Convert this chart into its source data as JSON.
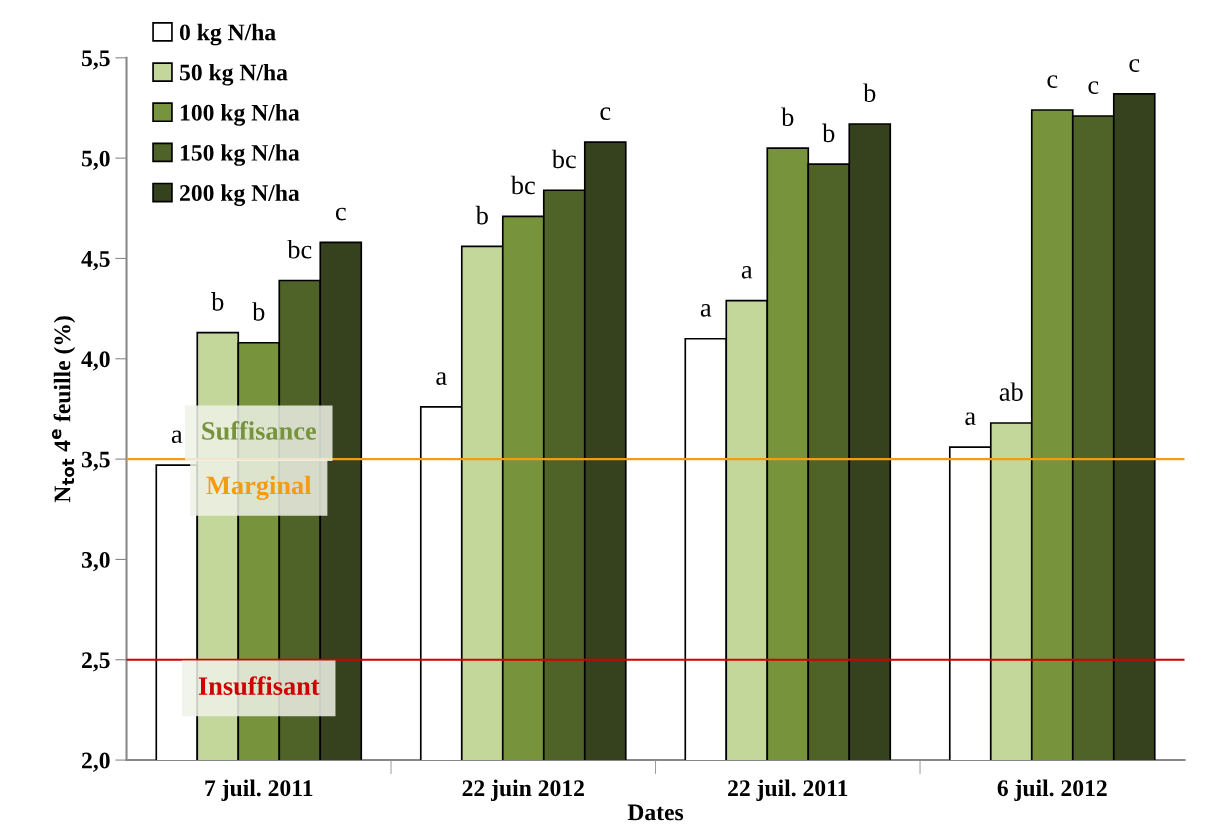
{
  "chart_data": {
    "type": "bar",
    "xlabel": "Dates",
    "ylabel": "N$_{tot}$ 4$^{e}$ feuille (%)",
    "categories": [
      "7 juil. 2011",
      "22 juin 2012",
      "22 juil. 2011",
      "6 juil. 2012"
    ],
    "series": [
      {
        "name": "0 kg N/ha",
        "color": "#ffffff",
        "values": [
          3.47,
          3.76,
          4.1,
          3.56
        ],
        "value_labels": [
          "a",
          "a",
          "a",
          "a"
        ]
      },
      {
        "name": "50 kg N/ha",
        "color": "#c4d79b",
        "values": [
          4.13,
          4.56,
          4.29,
          3.68
        ],
        "value_labels": [
          "b",
          "b",
          "a",
          "ab"
        ]
      },
      {
        "name": "100 kg N/ha",
        "color": "#77933c",
        "values": [
          4.08,
          4.71,
          5.05,
          5.24
        ],
        "value_labels": [
          "b",
          "bc",
          "b",
          "c"
        ]
      },
      {
        "name": "150 kg N/ha",
        "color": "#4f6228",
        "values": [
          4.39,
          4.84,
          4.97,
          5.21
        ],
        "value_labels": [
          "bc",
          "bc",
          "b",
          "c"
        ]
      },
      {
        "name": "200 kg N/ha",
        "color": "#36421e",
        "values": [
          4.58,
          5.08,
          5.17,
          5.32
        ],
        "value_labels": [
          "c",
          "c",
          "b",
          "c"
        ]
      }
    ],
    "ylim": [
      2.0,
      5.5
    ],
    "yticks": [
      {
        "value": 2.0,
        "label": "2,0"
      },
      {
        "value": 2.5,
        "label": "2,5"
      },
      {
        "value": 3.0,
        "label": "3,0"
      },
      {
        "value": 3.5,
        "label": "3,5"
      },
      {
        "value": 4.0,
        "label": "4,0"
      },
      {
        "value": 4.5,
        "label": "4,5"
      },
      {
        "value": 5.0,
        "label": "5,0"
      },
      {
        "value": 5.5,
        "label": "5,5"
      }
    ],
    "ref_lines": [
      {
        "axis": "y",
        "value": 3.5,
        "label": "Marginal",
        "color": "#f39c12"
      },
      {
        "axis": "y",
        "value": 2.5,
        "label": "Insuffisant",
        "color": "#d00000"
      }
    ],
    "annotations": [
      "Suffisance"
    ],
    "grid": false,
    "legend": "top left"
  }
}
